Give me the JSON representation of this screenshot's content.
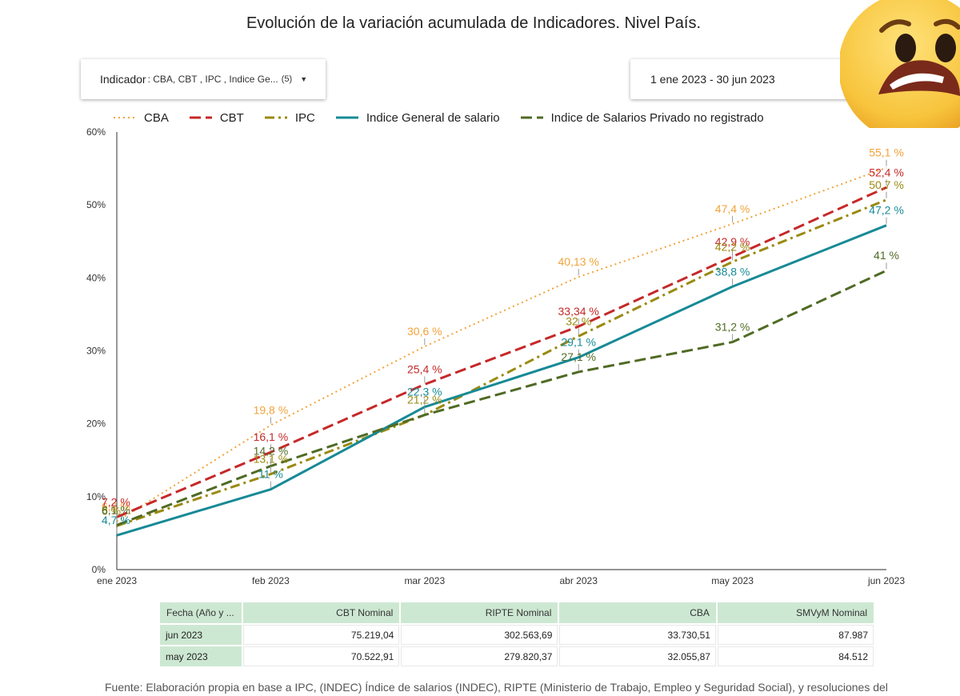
{
  "title": "Evolución de la variación acumulada de Indicadores. Nivel País.",
  "filters": {
    "indicator_label": "Indicador",
    "indicator_value": ": CBA, CBT , IPC , Indice Ge...",
    "indicator_count": "(5)",
    "date_range": "1 ene 2023 - 30 jun 2023"
  },
  "chart_data": {
    "type": "line",
    "categories": [
      "ene 2023",
      "feb 2023",
      "mar 2023",
      "abr 2023",
      "may 2023",
      "jun 2023"
    ],
    "yticks": [
      "0%",
      "10%",
      "20%",
      "30%",
      "40%",
      "50%",
      "60%"
    ],
    "ylim": [
      0,
      60
    ],
    "grid": false,
    "legend_position": "top",
    "series": [
      {
        "name": "CBA",
        "color": "#f2a33a",
        "dash": "dotted",
        "values": [
          6.6,
          19.8,
          30.6,
          40.13,
          47.4,
          55.1
        ],
        "labels": [
          "6,6 %",
          "19,8 %",
          "30,6 %",
          "40,13 %",
          "47,4 %",
          "55,1 %"
        ]
      },
      {
        "name": "CBT",
        "color": "#c62828",
        "dash": "dashed",
        "values": [
          7.2,
          16.1,
          25.4,
          33.34,
          42.9,
          52.4
        ],
        "labels": [
          "7,2 %",
          "16,1 %",
          "25,4 %",
          "33,34 %",
          "42,9 %",
          "52,4 %"
        ]
      },
      {
        "name": "IPC",
        "color": "#9a8a10",
        "dash": "dashdot",
        "values": [
          6.0,
          13.1,
          21.2,
          32.0,
          42.2,
          50.7
        ],
        "labels": [
          "6 %",
          "13,1 %",
          "21,2 %",
          "32 %",
          "42,2 %",
          "50,7 %"
        ]
      },
      {
        "name": "Indice General de salario",
        "color": "#178a96",
        "dash": "solid",
        "values": [
          4.7,
          11.0,
          22.3,
          29.1,
          38.8,
          47.2
        ],
        "labels": [
          "4,7 %",
          "11 %",
          "22,3 %",
          "29,1 %",
          "38,8 %",
          "47,2 %"
        ]
      },
      {
        "name": "Indice de Salarios Privado no registrado",
        "color": "#4f6b24",
        "dash": "dashed",
        "values": [
          6.1,
          14.2,
          21.2,
          27.1,
          31.2,
          41.0
        ],
        "labels": [
          "6,1 %",
          "14,2 %",
          "",
          "27,1 %",
          "31,2 %",
          "41 %"
        ]
      }
    ]
  },
  "table": {
    "headers": [
      "Fecha (Año y ...",
      "CBT Nominal",
      "RIPTE Nominal",
      "CBA",
      "SMVyM Nominal"
    ],
    "rows": [
      [
        "jun 2023",
        "75.219,04",
        "302.563,69",
        "33.730,51",
        "87.987"
      ],
      [
        "may 2023",
        "70.522,91",
        "279.820,37",
        "32.055,87",
        "84.512"
      ]
    ]
  },
  "source": "Fuente: Elaboración propia en base a IPC, (INDEC) Índice de salarios (INDEC), RIPTE (Ministerio de Trabajo, Empleo y Seguridad Social), y resoluciones del",
  "emoji": {
    "icon": "worried-face-emoji",
    "face_color": "#f7c43c",
    "mouth_color": "#7a2a1a"
  }
}
